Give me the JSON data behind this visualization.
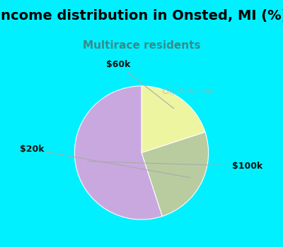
{
  "title": "Income distribution in Onsted, MI (%)",
  "subtitle": "Multirace residents",
  "title_color": "#000000",
  "subtitle_color": "#3a8a8a",
  "slices": [
    {
      "label": "$60k",
      "value": 20,
      "color": "#eef5a0"
    },
    {
      "label": "$20k",
      "value": 25,
      "color": "#b8cca0"
    },
    {
      "label": "$100k",
      "value": 55,
      "color": "#c9a8e0"
    }
  ],
  "background_cyan": "#00f0ff",
  "background_chart": "#dff5ee",
  "label_fontsize": 9,
  "title_fontsize": 14,
  "subtitle_fontsize": 11,
  "startangle": 90
}
